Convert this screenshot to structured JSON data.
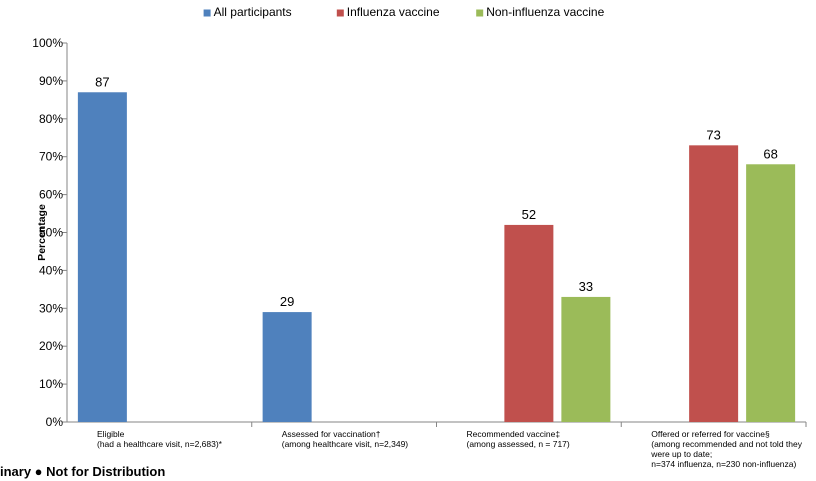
{
  "chart_data": {
    "type": "bar",
    "ylabel": "Percentage",
    "ylim": [
      0,
      100
    ],
    "ytick_step": 10,
    "ytick_suffix": "%",
    "grid": false,
    "legend_position": "top",
    "series": [
      {
        "name": "All participants",
        "color": "#4F81BD",
        "values": [
          87,
          29,
          null,
          null
        ]
      },
      {
        "name": "Influenza vaccine",
        "color": "#C0504D",
        "values": [
          null,
          null,
          52,
          73
        ]
      },
      {
        "name": "Non-influenza vaccine",
        "color": "#9BBB59",
        "values": [
          null,
          null,
          33,
          68
        ]
      }
    ],
    "categories": [
      [
        "Eligible",
        "(had a healthcare visit, n=2,683)*"
      ],
      [
        "Assessed for vaccination†",
        "(among healthcare visit, n=2,349)"
      ],
      [
        "Recommended  vaccine‡",
        "(among assessed, n = 717)"
      ],
      [
        "Offered or referred for vaccine§",
        "(among recommended and not told they",
        "were up to date;",
        "n=374 influenza, n=230 non-influenza)"
      ]
    ]
  },
  "footer": {
    "text": "inary  ●  Not for Distribution"
  }
}
